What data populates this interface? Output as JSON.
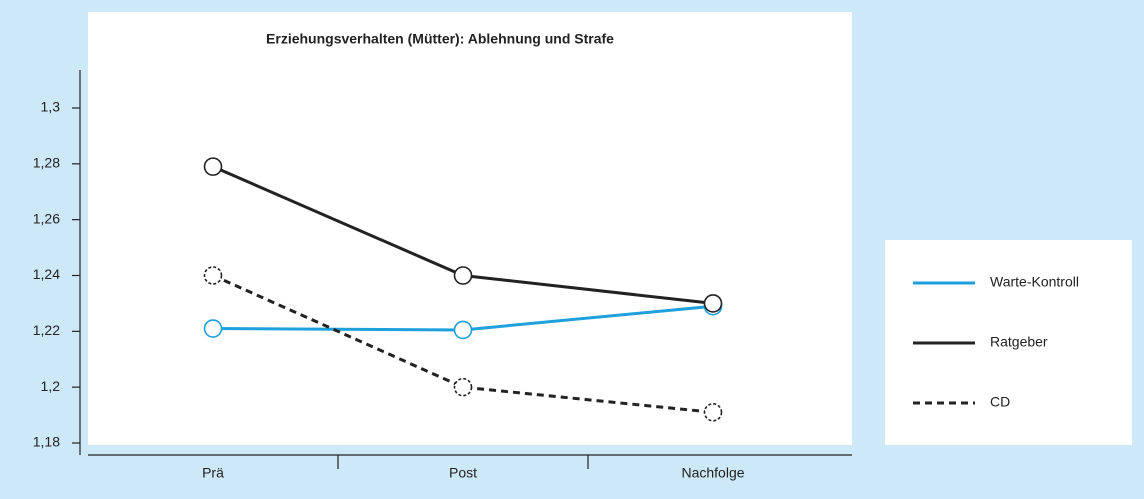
{
  "chart_data": {
    "type": "line",
    "title": "Erziehungsverhalten (Mütter): Ablehnung und Strafe",
    "categories": [
      "Prä",
      "Post",
      "Nachfolge"
    ],
    "series": [
      {
        "name": "Warte-Kontroll",
        "color": "#1ea0dc",
        "style": "solid",
        "values": [
          1.221,
          1.2205,
          1.229
        ]
      },
      {
        "name": "Ratgeber",
        "color": "#222222",
        "style": "solid",
        "values": [
          1.279,
          1.24,
          1.23
        ]
      },
      {
        "name": "CD",
        "color": "#222222",
        "style": "dashed",
        "values": [
          1.24,
          1.2,
          1.191
        ]
      }
    ],
    "ylim": [
      1.18,
      1.3
    ],
    "yticks": [
      {
        "value": 1.18,
        "label": "1,18"
      },
      {
        "value": 1.2,
        "label": "1,2"
      },
      {
        "value": 1.22,
        "label": "1,22"
      },
      {
        "value": 1.24,
        "label": "1,24"
      },
      {
        "value": 1.26,
        "label": "1,26"
      },
      {
        "value": 1.28,
        "label": "1,28"
      },
      {
        "value": 1.3,
        "label": "1,3"
      }
    ],
    "legend": "right"
  }
}
